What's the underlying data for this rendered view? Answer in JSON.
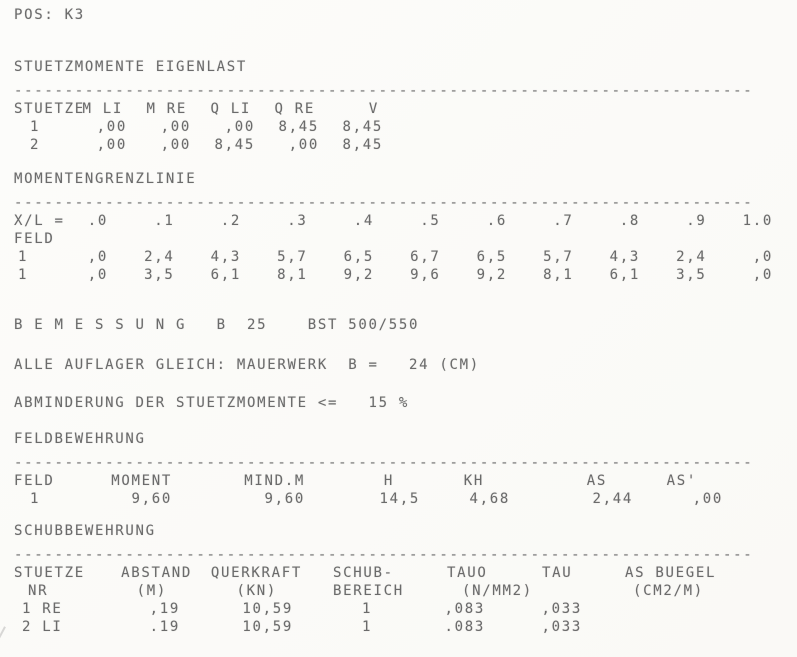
{
  "pos_label": "POS: K3",
  "separator": "-------------------------------------------------------------------------",
  "stuetzmomente": {
    "title": "STUETZMOMENTE EIGENLAST",
    "headers": [
      "STUETZE",
      "M LI",
      "M RE",
      "Q LI",
      "Q RE",
      "V"
    ],
    "rows": [
      [
        "1",
        ",00",
        ",00",
        ",00",
        "8,45",
        "8,45"
      ],
      [
        "2",
        ",00",
        ",00",
        "8,45",
        ",00",
        "8,45"
      ]
    ]
  },
  "momentengrenzlinie": {
    "title": "MOMENTENGRENZLINIE",
    "xl_label": "X/L =",
    "x_values": [
      ".0",
      ".1",
      ".2",
      ".3",
      ".4",
      ".5",
      ".6",
      ".7",
      ".8",
      ".9",
      "1.0"
    ],
    "feld_label": "FELD",
    "rows": [
      {
        "feld": "1",
        "values": [
          ",0",
          "2,4",
          "4,3",
          "5,7",
          "6,5",
          "6,7",
          "6,5",
          "5,7",
          "4,3",
          "2,4",
          ",0"
        ]
      },
      {
        "feld": "1",
        "values": [
          ",0",
          "3,5",
          "6,1",
          "8,1",
          "9,2",
          "9,6",
          "9,2",
          "8,1",
          "6,1",
          "3,5",
          ",0"
        ]
      }
    ]
  },
  "bemessung": {
    "line1": "B E M E S S U N G   B  25    BST 500/550",
    "line2": "ALLE AUFLAGER GLEICH: MAUERWERK  B =   24 (CM)",
    "line3": "ABMINDERUNG DER STUETZMOMENTE <=   15 %"
  },
  "feldbewehrung": {
    "title": "FELDBEWEHRUNG",
    "headers": [
      "FELD",
      "MOMENT",
      "MIND.M",
      "H",
      "KH",
      "AS",
      "AS'"
    ],
    "rows": [
      [
        "1",
        "9,60",
        "9,60",
        "14,5",
        "4,68",
        "2,44",
        ",00"
      ]
    ]
  },
  "schubbewehrung": {
    "title": "SCHUBBEWEHRUNG",
    "headers_top": [
      "STUETZE",
      "ABSTAND",
      "QUERKRAFT",
      "SCHUB-",
      "TAUO",
      "TAU",
      "AS BUEGEL"
    ],
    "headers_sub": [
      "NR",
      "(M)",
      "(KN)",
      "BEREICH",
      "(N/MM2)",
      "",
      "(CM2/M)"
    ],
    "rows": [
      [
        "1 RE",
        ",19",
        "10,59",
        "1",
        ",083",
        ",033",
        ""
      ],
      [
        "2 LI",
        ".19",
        "10,59",
        "1",
        ".083",
        ",033",
        ""
      ]
    ]
  }
}
